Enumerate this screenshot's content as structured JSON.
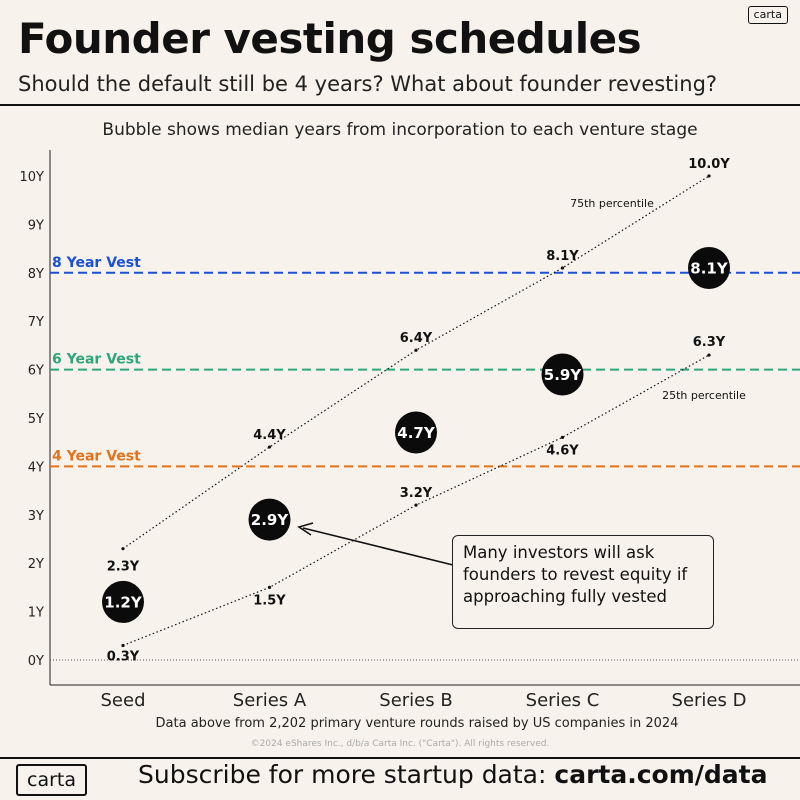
{
  "header": {
    "title": "Founder vesting schedules",
    "subtitle": "Should the default still be 4 years? What about founder revesting?",
    "brand": "carta"
  },
  "chart_data": {
    "type": "scatter",
    "caption": "Bubble shows median years from incorporation to each venture stage",
    "categories": [
      "Seed",
      "Series A",
      "Series B",
      "Series C",
      "Series D"
    ],
    "ylim": [
      0,
      10
    ],
    "yticks": [
      0,
      1,
      2,
      3,
      4,
      5,
      6,
      7,
      8,
      9,
      10
    ],
    "ytick_suffix": "Y",
    "median": [
      1.2,
      2.9,
      4.7,
      5.9,
      8.1
    ],
    "p75": [
      2.3,
      4.4,
      6.4,
      8.1,
      10.0
    ],
    "p25": [
      0.3,
      1.5,
      3.2,
      4.6,
      6.3
    ],
    "p75_label": "75th percentile",
    "p25_label": "25th percentile",
    "reference_lines": [
      {
        "label": "8 Year Vest",
        "value": 8,
        "color": "#1a4fd6"
      },
      {
        "label": "6 Year Vest",
        "value": 6,
        "color": "#2fa67a"
      },
      {
        "label": "4 Year Vest",
        "value": 4,
        "color": "#e2731b"
      }
    ],
    "annotation": "Many investors will ask founders to revest equity if approaching fully vested"
  },
  "source": "Data above from 2,202 primary venture rounds raised by US companies in 2024",
  "copyright": "©2024 eShares Inc., d/b/a Carta Inc. (\"Carta\"). All rights reserved.",
  "footer": {
    "logo": "carta",
    "text": "Subscribe for more startup data: ",
    "link": "carta.com/data"
  }
}
